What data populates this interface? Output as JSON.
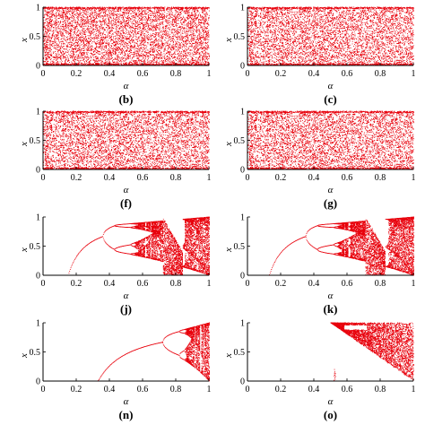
{
  "figure": {
    "accent_color": "#e8000b",
    "axis_color": "#000000"
  },
  "chart_data": [
    {
      "type": "scatter",
      "caption": "(b)",
      "pattern": "chaotic",
      "xlabel": "α",
      "ylabel": "x",
      "xlim": [
        0,
        1
      ],
      "ylim": [
        0,
        1
      ],
      "xticks": [
        "0",
        "0.2",
        "0.4",
        "0.6",
        "0.8",
        "1"
      ],
      "yticks": [
        "0",
        "0.5",
        "1"
      ],
      "color": "#e8000b"
    },
    {
      "type": "scatter",
      "caption": "(c)",
      "pattern": "chaotic",
      "xlabel": "α",
      "ylabel": "x",
      "xlim": [
        0,
        1
      ],
      "ylim": [
        0,
        1
      ],
      "xticks": [
        "0",
        "0.2",
        "0.4",
        "0.6",
        "0.8",
        "1"
      ],
      "yticks": [
        "0",
        "0.5",
        "1"
      ],
      "color": "#e8000b"
    },
    {
      "type": "scatter",
      "caption": "(f)",
      "pattern": "chaotic",
      "xlabel": "α",
      "ylabel": "x",
      "xlim": [
        0,
        1
      ],
      "ylim": [
        0,
        1
      ],
      "xticks": [
        "0",
        "0.2",
        "0.4",
        "0.6",
        "0.8",
        "1"
      ],
      "yticks": [
        "0",
        "0.5",
        "1"
      ],
      "color": "#e8000b"
    },
    {
      "type": "scatter",
      "caption": "(g)",
      "pattern": "chaotic",
      "xlabel": "α",
      "ylabel": "x",
      "xlim": [
        0,
        1
      ],
      "ylim": [
        0,
        1
      ],
      "xticks": [
        "0",
        "0.2",
        "0.4",
        "0.6",
        "0.8",
        "1"
      ],
      "yticks": [
        "0",
        "0.5",
        "1"
      ],
      "color": "#e8000b"
    },
    {
      "type": "scatter",
      "caption": "(j)",
      "pattern": "bifurcation",
      "xlabel": "α",
      "ylabel": "x",
      "xlim": [
        0,
        1
      ],
      "ylim": [
        0,
        1
      ],
      "xticks": [
        "0",
        "0.2",
        "0.4",
        "0.6",
        "0.8",
        "1"
      ],
      "yticks": [
        "0",
        "0.5",
        "1"
      ],
      "color": "#e8000b",
      "fixed_zero_until": 0.15,
      "branch_until": 0.36,
      "period2_until": 0.43,
      "chaos_bands": [
        [
          0.43,
          0.72
        ],
        [
          0.84,
          1.0
        ]
      ],
      "window_decreasing": [
        0.72,
        0.84
      ]
    },
    {
      "type": "scatter",
      "caption": "(k)",
      "pattern": "bifurcation",
      "xlabel": "α",
      "ylabel": "x",
      "xlim": [
        0,
        1
      ],
      "ylim": [
        0,
        1
      ],
      "xticks": [
        "0",
        "0.2",
        "0.4",
        "0.6",
        "0.8",
        "1"
      ],
      "yticks": [
        "0",
        "0.5",
        "1"
      ],
      "color": "#e8000b",
      "fixed_zero_until": 0.13,
      "branch_until": 0.35,
      "period2_until": 0.42,
      "chaos_bands": [
        [
          0.42,
          0.71
        ],
        [
          0.83,
          1.0
        ]
      ],
      "window_decreasing": [
        0.71,
        0.83
      ]
    },
    {
      "type": "scatter",
      "caption": "(n)",
      "pattern": "bifurcation_late",
      "xlabel": "α",
      "ylabel": "x",
      "xlim": [
        0,
        1
      ],
      "ylim": [
        0,
        1
      ],
      "xticks": [
        "0",
        "0.2",
        "0.4",
        "0.6",
        "0.8",
        "1"
      ],
      "yticks": [
        "0",
        "0.5",
        "1"
      ],
      "color": "#e8000b",
      "fixed_zero_until": 0.33,
      "branch_until": 0.72,
      "period2_until": 0.82,
      "chaos_bands": [
        [
          0.82,
          1.0
        ]
      ]
    },
    {
      "type": "scatter",
      "caption": "(o)",
      "pattern": "wedge",
      "xlabel": "α",
      "ylabel": "x",
      "xlim": [
        0,
        1
      ],
      "ylim": [
        0,
        1
      ],
      "xticks": [
        "0",
        "0.2",
        "0.4",
        "0.6",
        "0.8",
        "1"
      ],
      "yticks": [
        "0",
        "0.5",
        "1"
      ],
      "color": "#e8000b",
      "fixed_zero_until": 0.5,
      "wedge_start": 0.5
    }
  ]
}
